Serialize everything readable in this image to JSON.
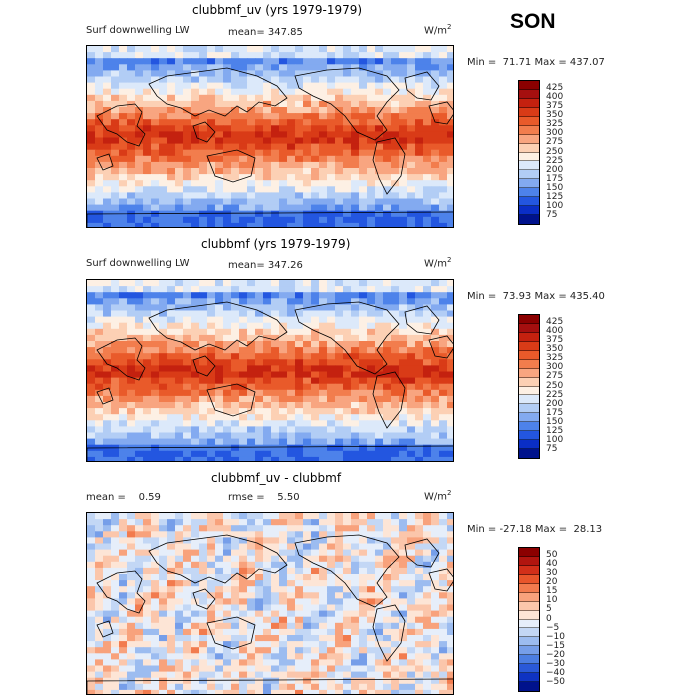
{
  "season": "SON",
  "panels": [
    {
      "title": "clubbmf_uv (yrs 1979-1979)",
      "subtitle_left": "Surf downwelling LW",
      "stat1": "mean= 347.85",
      "stat2": "",
      "units": "W/m",
      "units_sup": "2",
      "minmax": "Min =  71.71 Max = 437.07",
      "palette": "absolute"
    },
    {
      "title": "clubbmf (yrs 1979-1979)",
      "subtitle_left": "Surf downwelling LW",
      "stat1": "mean= 347.26",
      "stat2": "",
      "units": "W/m",
      "units_sup": "2",
      "minmax": "Min =  73.93 Max = 435.40",
      "palette": "absolute"
    },
    {
      "title": "clubbmf_uv - clubbmf",
      "subtitle_left": "",
      "stat1": "mean =    0.59",
      "stat2": "rmse =    5.50",
      "units": "W/m",
      "units_sup": "2",
      "minmax": "Min = -27.18 Max =  28.13",
      "palette": "difference"
    }
  ],
  "colorbars": {
    "absolute": {
      "labels": [
        "425",
        "400",
        "375",
        "350",
        "325",
        "300",
        "275",
        "250",
        "225",
        "200",
        "175",
        "150",
        "125",
        "100",
        "75"
      ],
      "colors": [
        "#8b0000",
        "#a50f0f",
        "#c4210f",
        "#d93b17",
        "#e95a2a",
        "#f27d4d",
        "#f8a580",
        "#fcd0b4",
        "#fdf0e4",
        "#dce9fa",
        "#b2cdf5",
        "#83aaf0",
        "#4d82ea",
        "#2356e0",
        "#0a2ec6",
        "#00128c"
      ]
    },
    "difference": {
      "labels": [
        "50",
        "40",
        "30",
        "20",
        "15",
        "10",
        "5",
        "0",
        "−5",
        "−10",
        "−15",
        "−20",
        "−30",
        "−40",
        "−50"
      ],
      "colors": [
        "#8b0000",
        "#b1150f",
        "#d22f19",
        "#e8552b",
        "#f27b4e",
        "#f8a27c",
        "#fbc6ab",
        "#fde5d6",
        "#e6eefa",
        "#c3d7f5",
        "#9cbcf0",
        "#769ee9",
        "#4c7ee2",
        "#2a59d8",
        "#0f33c2",
        "#00128c"
      ]
    }
  }
}
